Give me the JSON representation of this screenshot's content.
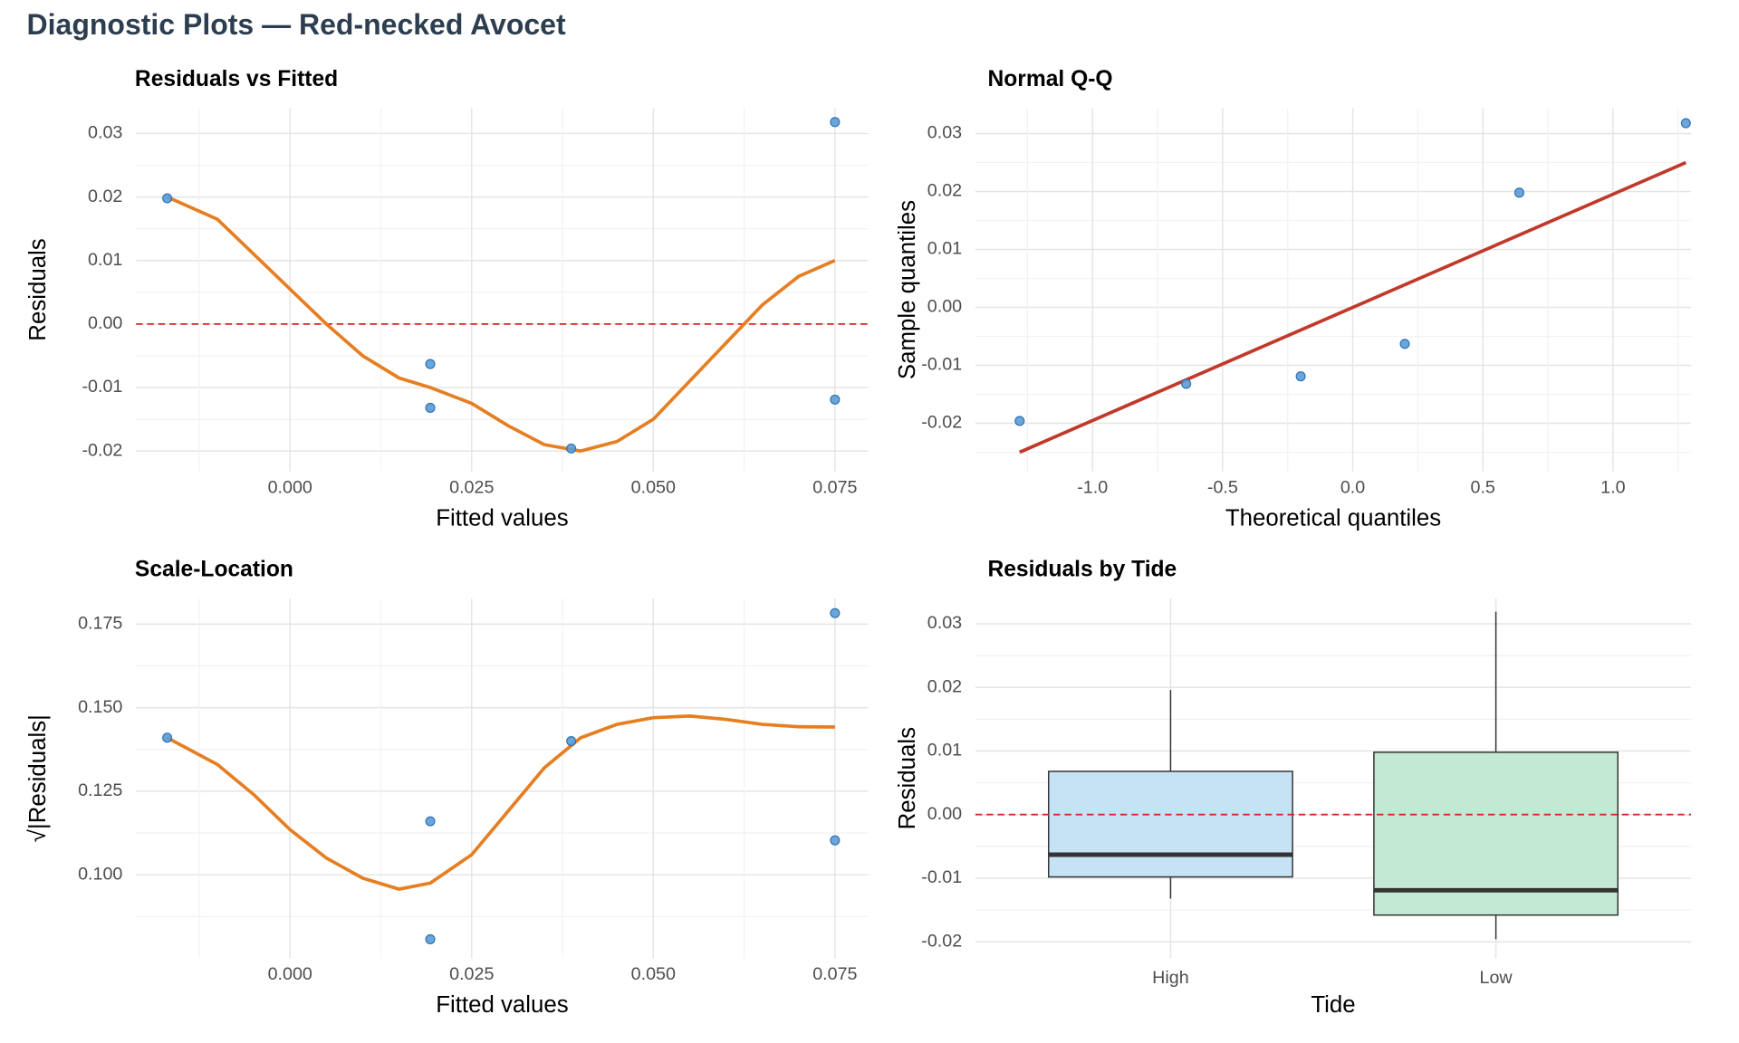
{
  "title": "Diagnostic Plots — Red-necked Avocet",
  "chart_data": [
    {
      "type": "scatter",
      "title": "Residuals vs Fitted",
      "x_label": "Fitted values",
      "y_label": "Residuals",
      "x": [
        -0.0169,
        0.0193,
        0.0193,
        0.0387,
        0.075,
        0.075
      ],
      "y": [
        0.0198,
        -0.0063,
        -0.0132,
        -0.0196,
        0.0318,
        -0.0119
      ],
      "color": "#5b9bd5",
      "fit_line": {
        "x": [
          -0.0169,
          -0.01,
          -0.005,
          0,
          0.005,
          0.01,
          0.015,
          0.0193,
          0.025,
          0.03,
          0.035,
          0.04,
          0.045,
          0.05,
          0.055,
          0.06,
          0.065,
          0.07,
          0.075
        ],
        "y": [
          0.02,
          0.0165,
          0.011,
          0.0055,
          0.0,
          -0.005,
          -0.0085,
          -0.01,
          -0.0125,
          -0.016,
          -0.019,
          -0.02,
          -0.0185,
          -0.015,
          -0.009,
          -0.003,
          0.003,
          0.0075,
          0.01
        ],
        "color": "#e67e22"
      },
      "hline": 0,
      "hline_color": "#d62728",
      "xlim": [
        -0.0212,
        0.0796
      ],
      "ylim": [
        -0.0232,
        0.034
      ],
      "xticks": [
        {
          "value": 0,
          "label": "0.000"
        },
        0.025,
        {
          "value": 0.05,
          "label": "0.050"
        },
        0.075
      ],
      "yticks": [
        -0.02,
        -0.01,
        {
          "value": 0,
          "label": "0.00"
        },
        0.01,
        0.02,
        0.03
      ],
      "grid": true
    },
    {
      "type": "scatter",
      "title": "Normal Q-Q",
      "x_label": "Theoretical quantiles",
      "y_label": "Sample quantiles",
      "x": [
        -1.28,
        -0.64,
        -0.2,
        0.2,
        0.64,
        1.28
      ],
      "y": [
        -0.0196,
        -0.0132,
        -0.0119,
        -0.0063,
        0.0198,
        0.0318
      ],
      "color": "#5b9bd5",
      "fit_line": {
        "x": [
          -1.28,
          1.28
        ],
        "y": [
          -0.025,
          0.025
        ],
        "color": "#c0392b"
      },
      "xlim": [
        -1.45,
        1.3
      ],
      "ylim": [
        -0.0283,
        0.0344
      ],
      "xticks": [
        {
          "value": -1,
          "label": "-1.0"
        },
        -0.5,
        {
          "value": 0,
          "label": "0.0"
        },
        0.5,
        {
          "value": 1,
          "label": "1.0"
        }
      ],
      "yticks": [
        -0.02,
        -0.01,
        {
          "value": 0,
          "label": "0.00"
        },
        0.01,
        0.02,
        0.03
      ],
      "grid": true
    },
    {
      "type": "scatter",
      "title": "Scale-Location",
      "x_label": "Fitted values",
      "y_label": "√|Residuals|",
      "x": [
        -0.0169,
        0.0193,
        0.0193,
        0.0387,
        0.075,
        0.075
      ],
      "y": [
        0.141,
        0.0807,
        0.116,
        0.14,
        0.1783,
        0.1103
      ],
      "color": "#5b9bd5",
      "fit_line": {
        "x": [
          -0.0169,
          -0.01,
          -0.005,
          0,
          0.005,
          0.01,
          0.015,
          0.0193,
          0.025,
          0.03,
          0.035,
          0.04,
          0.045,
          0.05,
          0.055,
          0.06,
          0.065,
          0.07,
          0.075
        ],
        "y": [
          0.141,
          0.133,
          0.124,
          0.1135,
          0.105,
          0.099,
          0.0957,
          0.0975,
          0.106,
          0.119,
          0.132,
          0.141,
          0.145,
          0.147,
          0.1475,
          0.1465,
          0.145,
          0.1443,
          0.1442
        ],
        "color": "#e67e22"
      },
      "xlim": [
        -0.0212,
        0.0796
      ],
      "ylim": [
        0.075,
        0.1827
      ],
      "xticks": [
        {
          "value": 0,
          "label": "0.000"
        },
        0.025,
        {
          "value": 0.05,
          "label": "0.050"
        },
        0.075
      ],
      "yticks": [
        {
          "value": 0.1,
          "label": "0.100"
        },
        0.125,
        {
          "value": 0.15,
          "label": "0.150"
        },
        0.175
      ],
      "grid": true
    },
    {
      "type": "box",
      "title": "Residuals by Tide",
      "x_label": "Tide",
      "y_label": "Residuals",
      "categories": [
        "High",
        "Low"
      ],
      "min": [
        -0.0132,
        -0.0196
      ],
      "q1": [
        -0.0098,
        -0.0158
      ],
      "median": [
        -0.0063,
        -0.0119
      ],
      "q3": [
        0.0068,
        0.0098
      ],
      "max": [
        0.0196,
        0.0319
      ],
      "colors": [
        "#c6e2f5",
        "#c3e8d3"
      ],
      "hline": 0,
      "hline_color": "#d62728",
      "ylim": [
        -0.0226,
        0.034
      ],
      "yticks": [
        -0.02,
        -0.01,
        {
          "value": 0,
          "label": "0.00"
        },
        0.01,
        0.02,
        0.03
      ],
      "grid": true
    }
  ]
}
